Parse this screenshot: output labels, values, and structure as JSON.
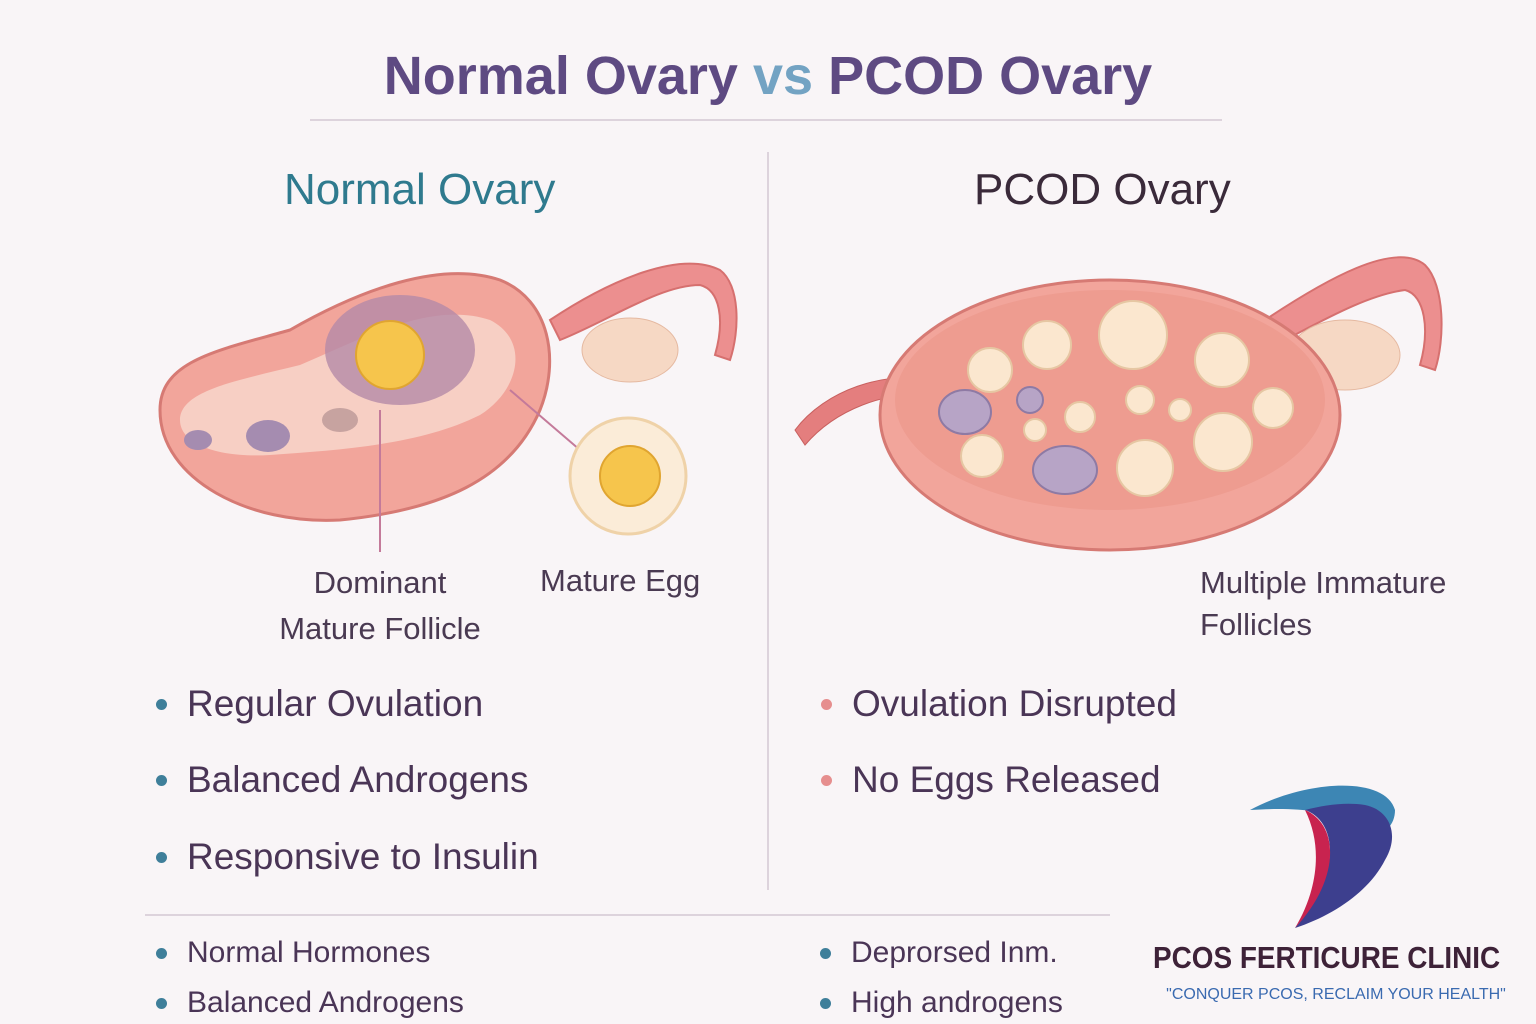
{
  "title": {
    "part1": "Normal Ovary",
    "vs": "vs",
    "part2": "PCOD Ovary"
  },
  "normal": {
    "heading": "Normal Ovary",
    "labels": {
      "follicle_line1": "Dominant",
      "follicle_line2": "Mature Follicle",
      "egg": "Mature Egg"
    },
    "bullets": [
      "Regular Ovulation",
      "Balanced Androgens",
      "Responsive to Insulin"
    ],
    "footer_bullets": [
      "Normal Hormones",
      "Balanced Androgens"
    ]
  },
  "pcod": {
    "heading": "PCOD Ovary",
    "labels": {
      "follicles_line1": "Multiple Immature",
      "follicles_line2": "Follicles"
    },
    "bullets": [
      "Ovulation Disrupted",
      "No Eggs Released"
    ],
    "footer_bullets": [
      "Deprorsed Inm.",
      "High androgens"
    ]
  },
  "logo": {
    "name": "PCOS FERTICURE CLINIC",
    "tagline": "\"CONQUER PCOS, RECLAIM YOUR HEALTH\""
  },
  "colors": {
    "title": "#5e4a82",
    "vs": "#73a3c3",
    "normal_heading": "#2f7a8e",
    "pcod_heading": "#3a2a3a",
    "normal_bullet": "#3f7f9a",
    "pcod_bullet": "#e68e8e",
    "tissue": "#f0a49a",
    "egg": "#f5c04a"
  }
}
